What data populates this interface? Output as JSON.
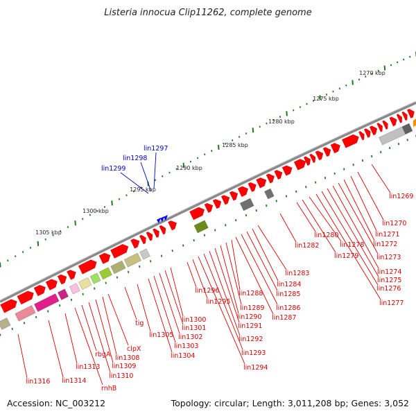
{
  "title": "Listeria innocua Clip11262, complete genome",
  "footer": {
    "accession": "Accession: NC_003212",
    "topology": "Topology: circular; Length: 3,011,208 bp; Genes: 3,052"
  },
  "colors": {
    "forward_gene": "#ff0000",
    "label_red": "#dd0000",
    "label_blue": "#0000cc",
    "ruler_tick": "#1e7a1e",
    "backbone": "#8a8a8a"
  },
  "kbp_labels": [
    "1270 kbp",
    "1275 kbp",
    "1280 kbp",
    "1285 kbp",
    "1290 kbp",
    "1295 kbp",
    "1300 kbp",
    "1305 kbp"
  ],
  "top_labels": [
    "lin1297",
    "lin1298",
    "lin1299"
  ],
  "gene_labels": [
    "lin1269",
    "lin1270",
    "lin1271",
    "lin1272",
    "lin1273",
    "lin1274",
    "lin1275",
    "lin1276",
    "lin1277",
    "lin1278",
    "lin1279",
    "lin1280",
    "lin1282",
    "lin1283",
    "lin1284",
    "lin1285",
    "lin1286",
    "lin1287",
    "lin1288",
    "lin1289",
    "lin1290",
    "lin1291",
    "lin1292",
    "lin1293",
    "lin1294",
    "lin1295",
    "lin1296",
    "lin1300",
    "lin1301",
    "lin1302",
    "lin1303",
    "lin1304",
    "lin1305",
    "tig",
    "clpX",
    "lin1308",
    "lin1309",
    "lin1310",
    "rbgA",
    "rnhB",
    "lin1313",
    "lin1314",
    "lin1316"
  ]
}
